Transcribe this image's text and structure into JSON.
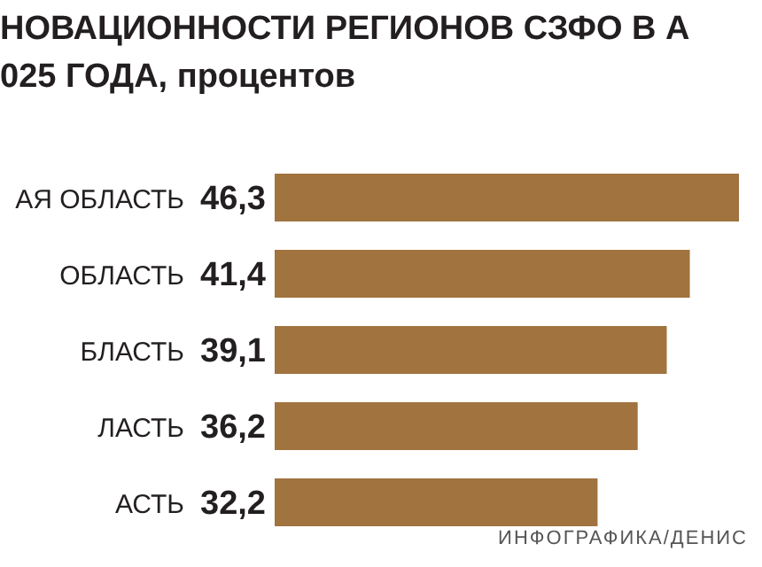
{
  "chart_data": {
    "type": "bar",
    "orientation": "horizontal",
    "title": "НОВАЦИОННОСТИ РЕГИОНОВ СЗФО В А",
    "subtitle": "025 ГОДА, процентов",
    "categories": [
      "АЯ ОБЛАСТЬ",
      "ОБЛАСТЬ",
      "БЛАСТЬ",
      "ЛАСТЬ",
      "АСТЬ"
    ],
    "values": [
      46.3,
      41.4,
      39.1,
      36.2,
      32.2
    ],
    "value_labels": [
      "46,3",
      "41,4",
      "39,1",
      "36,2",
      "32,2"
    ],
    "color": "#a0733f",
    "annotations": [
      "ИНФОГРАФИКА/ДЕНИС"
    ]
  }
}
